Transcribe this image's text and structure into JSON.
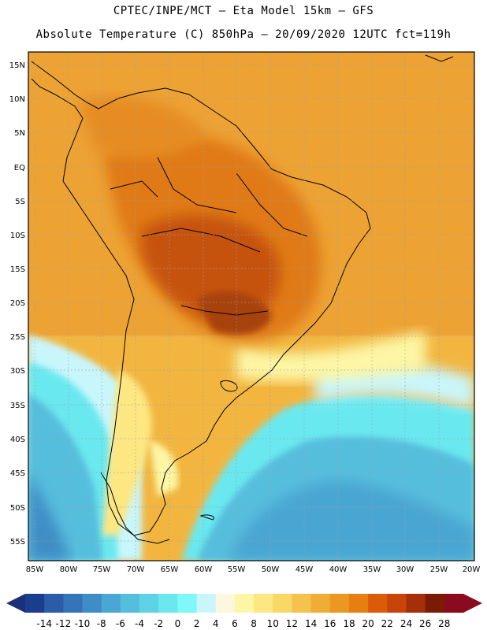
{
  "header": {
    "line1": "CPTEC/INPE/MCT —  Eta Model 15km — GFS",
    "line2": "Absolute Temperature (C) 850hPa — 20/09/2020 12UTC fct=119h"
  },
  "axes": {
    "lat_labels": [
      "15N",
      "10N",
      "5N",
      "EQ",
      "5S",
      "10S",
      "15S",
      "20S",
      "25S",
      "30S",
      "35S",
      "40S",
      "45S",
      "50S",
      "55S"
    ],
    "lon_labels": [
      "85W",
      "80W",
      "75W",
      "70W",
      "65W",
      "60W",
      "55W",
      "50W",
      "45W",
      "40W",
      "35W",
      "30W",
      "25W",
      "20W"
    ]
  },
  "colorbar": {
    "labels": [
      "-14",
      "-12",
      "-10",
      "-8",
      "-6",
      "-4",
      "-2",
      "0",
      "2",
      "4",
      "6",
      "8",
      "10",
      "12",
      "14",
      "16",
      "18",
      "20",
      "22",
      "24",
      "26",
      "28"
    ],
    "colors": [
      "#1a3d8f",
      "#2a5ca8",
      "#3574b8",
      "#3f8dc6",
      "#4aa6d2",
      "#56bedd",
      "#5fd2e6",
      "#6be8ef",
      "#7ff7fb",
      "#c9f6fb",
      "#fdf7e0",
      "#fdf6a5",
      "#fde782",
      "#f9d865",
      "#f4c24d",
      "#f0ad35",
      "#ec9722",
      "#e77e12",
      "#dc5b0a",
      "#c84408",
      "#a52f07",
      "#7a1b06",
      "#8c0a1e"
    ],
    "under_color": "#1e2f7a",
    "over_color": "#8c0a1e"
  },
  "colors": {
    "ocean_cold": "#4fd4e8",
    "ocean_cool": "#6fe8f0",
    "ocean_warm": "#f3c24c",
    "land_hot": "#e07a14",
    "land_hottest": "#c65210"
  }
}
